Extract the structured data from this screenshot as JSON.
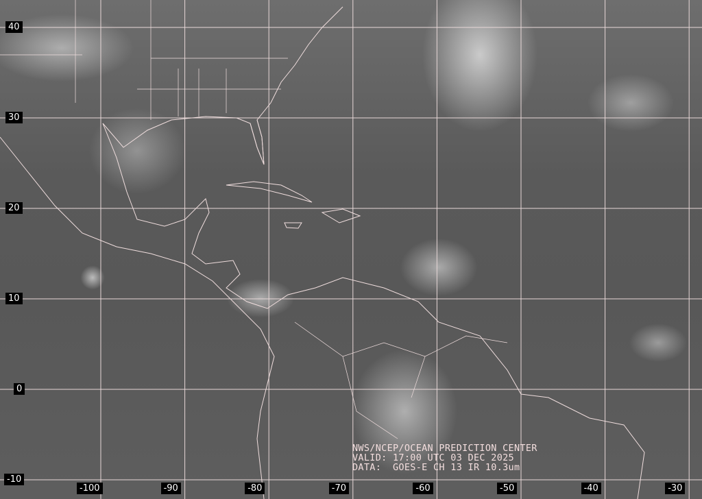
{
  "map": {
    "type": "satellite infrared image",
    "latitude_labels": [
      "40",
      "30",
      "20",
      "10",
      "0",
      "-10"
    ],
    "longitude_labels": [
      "-100",
      "-90",
      "-80",
      "-70",
      "-60",
      "-50",
      "-40",
      "-30"
    ],
    "grid_color": "#e8d8d8",
    "coast_color": "#f0dede"
  },
  "credit": {
    "line1": "NWS/NCEP/OCEAN PREDICTION CENTER",
    "line2": "VALID: 17:00 UTC 03 DEC 2025",
    "line3": "DATA:  GOES-E CH 13 IR 10.3um"
  }
}
